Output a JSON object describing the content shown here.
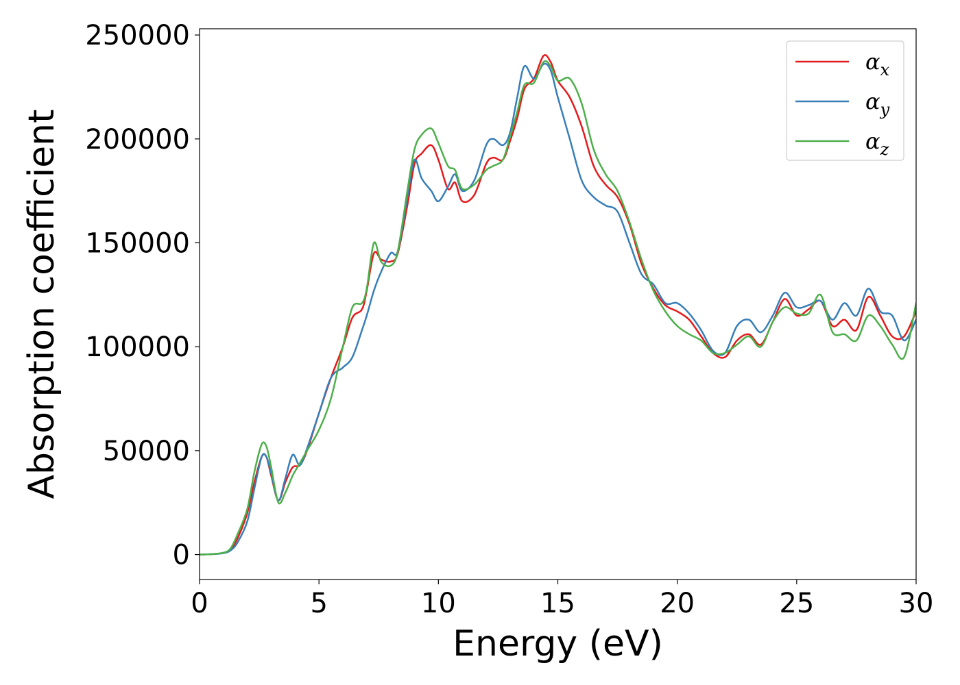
{
  "chart_data": {
    "type": "line",
    "title": "",
    "xlabel": "Energy (eV)",
    "ylabel": "Absorption coefficient",
    "xlim": [
      0,
      30
    ],
    "ylim": [
      -12000,
      253000
    ],
    "xticks": [
      0,
      5,
      10,
      15,
      20,
      25,
      30
    ],
    "xtick_labels": [
      "0",
      "5",
      "10",
      "15",
      "20",
      "25",
      "30"
    ],
    "yticks": [
      0,
      50000,
      100000,
      150000,
      200000,
      250000
    ],
    "ytick_labels": [
      "0",
      "50000",
      "100000",
      "150000",
      "200000",
      "250000"
    ],
    "grid": false,
    "legend": {
      "placement": "top-right"
    },
    "series": [
      {
        "name": "αx",
        "legend_base": "α",
        "legend_sub": "x",
        "color": "#e41a1c",
        "points": [
          [
            0,
            0
          ],
          [
            0.5,
            200
          ],
          [
            1.0,
            800
          ],
          [
            1.3,
            2500
          ],
          [
            1.6,
            8000
          ],
          [
            2.0,
            20000
          ],
          [
            2.3,
            35000
          ],
          [
            2.6,
            47000
          ],
          [
            2.8,
            47000
          ],
          [
            3.0,
            38000
          ],
          [
            3.3,
            26000
          ],
          [
            3.6,
            35000
          ],
          [
            3.9,
            42000
          ],
          [
            4.2,
            43000
          ],
          [
            4.5,
            50000
          ],
          [
            5.0,
            68000
          ],
          [
            5.5,
            85000
          ],
          [
            6.0,
            100000
          ],
          [
            6.4,
            114000
          ],
          [
            6.8,
            118000
          ],
          [
            7.0,
            127000
          ],
          [
            7.3,
            145000
          ],
          [
            7.6,
            142000
          ],
          [
            8.0,
            141000
          ],
          [
            8.3,
            145000
          ],
          [
            8.7,
            168000
          ],
          [
            9.0,
            188000
          ],
          [
            9.3,
            193000
          ],
          [
            9.7,
            197000
          ],
          [
            10.0,
            190000
          ],
          [
            10.4,
            176000
          ],
          [
            10.7,
            179000
          ],
          [
            11.0,
            170000
          ],
          [
            11.5,
            173000
          ],
          [
            12.0,
            188000
          ],
          [
            12.3,
            191000
          ],
          [
            12.7,
            190000
          ],
          [
            13.0,
            199000
          ],
          [
            13.3,
            210000
          ],
          [
            13.6,
            224000
          ],
          [
            14.0,
            229000
          ],
          [
            14.4,
            240000
          ],
          [
            14.7,
            237000
          ],
          [
            15.0,
            228000
          ],
          [
            15.5,
            220000
          ],
          [
            16.0,
            206000
          ],
          [
            16.5,
            187000
          ],
          [
            17.0,
            178000
          ],
          [
            17.5,
            172000
          ],
          [
            18.0,
            159000
          ],
          [
            18.5,
            140000
          ],
          [
            19.0,
            128000
          ],
          [
            19.5,
            120000
          ],
          [
            20.0,
            117000
          ],
          [
            20.5,
            113000
          ],
          [
            21.0,
            105000
          ],
          [
            21.5,
            97000
          ],
          [
            22.0,
            95000
          ],
          [
            22.5,
            103000
          ],
          [
            23.0,
            106000
          ],
          [
            23.5,
            101000
          ],
          [
            24.0,
            112000
          ],
          [
            24.5,
            123000
          ],
          [
            25.0,
            115000
          ],
          [
            25.5,
            118000
          ],
          [
            26.0,
            122000
          ],
          [
            26.5,
            110000
          ],
          [
            27.0,
            113000
          ],
          [
            27.5,
            108000
          ],
          [
            28.0,
            124000
          ],
          [
            28.5,
            115000
          ],
          [
            29.0,
            105000
          ],
          [
            29.5,
            105000
          ],
          [
            30.0,
            117000
          ]
        ]
      },
      {
        "name": "αy",
        "legend_base": "α",
        "legend_sub": "y",
        "color": "#377eb8",
        "points": [
          [
            0,
            0
          ],
          [
            0.5,
            200
          ],
          [
            1.0,
            700
          ],
          [
            1.3,
            2000
          ],
          [
            1.6,
            6000
          ],
          [
            2.0,
            16000
          ],
          [
            2.3,
            32000
          ],
          [
            2.6,
            47000
          ],
          [
            2.8,
            47000
          ],
          [
            3.0,
            39000
          ],
          [
            3.3,
            26000
          ],
          [
            3.6,
            37000
          ],
          [
            3.9,
            48000
          ],
          [
            4.2,
            43000
          ],
          [
            4.5,
            51000
          ],
          [
            5.0,
            68000
          ],
          [
            5.5,
            85000
          ],
          [
            6.0,
            90000
          ],
          [
            6.4,
            95000
          ],
          [
            6.8,
            108000
          ],
          [
            7.0,
            115000
          ],
          [
            7.3,
            127000
          ],
          [
            7.6,
            136000
          ],
          [
            8.0,
            145000
          ],
          [
            8.3,
            146000
          ],
          [
            8.7,
            172000
          ],
          [
            9.0,
            190000
          ],
          [
            9.3,
            181000
          ],
          [
            9.7,
            175000
          ],
          [
            10.0,
            170000
          ],
          [
            10.4,
            177000
          ],
          [
            10.7,
            183000
          ],
          [
            11.0,
            175000
          ],
          [
            11.5,
            180000
          ],
          [
            12.0,
            197000
          ],
          [
            12.3,
            200000
          ],
          [
            12.7,
            197000
          ],
          [
            13.0,
            203000
          ],
          [
            13.3,
            220000
          ],
          [
            13.6,
            235000
          ],
          [
            14.0,
            229000
          ],
          [
            14.4,
            236000
          ],
          [
            14.7,
            233000
          ],
          [
            15.0,
            220000
          ],
          [
            15.5,
            200000
          ],
          [
            16.0,
            180000
          ],
          [
            16.5,
            172000
          ],
          [
            17.0,
            168000
          ],
          [
            17.5,
            165000
          ],
          [
            18.0,
            150000
          ],
          [
            18.5,
            135000
          ],
          [
            19.0,
            130000
          ],
          [
            19.5,
            121000
          ],
          [
            20.0,
            121000
          ],
          [
            20.5,
            116000
          ],
          [
            21.0,
            108000
          ],
          [
            21.5,
            98000
          ],
          [
            22.0,
            97000
          ],
          [
            22.5,
            110000
          ],
          [
            23.0,
            113000
          ],
          [
            23.5,
            107000
          ],
          [
            24.0,
            115000
          ],
          [
            24.5,
            126000
          ],
          [
            25.0,
            119000
          ],
          [
            25.5,
            120000
          ],
          [
            26.0,
            122000
          ],
          [
            26.5,
            113000
          ],
          [
            27.0,
            121000
          ],
          [
            27.5,
            115000
          ],
          [
            28.0,
            128000
          ],
          [
            28.5,
            117000
          ],
          [
            29.0,
            115000
          ],
          [
            29.5,
            103000
          ],
          [
            30.0,
            113000
          ]
        ]
      },
      {
        "name": "αz",
        "legend_base": "α",
        "legend_sub": "z",
        "color": "#4daf4a",
        "points": [
          [
            0,
            0
          ],
          [
            0.5,
            200
          ],
          [
            1.0,
            900
          ],
          [
            1.3,
            3000
          ],
          [
            1.6,
            10000
          ],
          [
            2.0,
            22000
          ],
          [
            2.3,
            40000
          ],
          [
            2.6,
            53000
          ],
          [
            2.8,
            52000
          ],
          [
            3.0,
            42000
          ],
          [
            3.3,
            25000
          ],
          [
            3.6,
            30000
          ],
          [
            3.9,
            38000
          ],
          [
            4.2,
            44000
          ],
          [
            4.5,
            50000
          ],
          [
            5.0,
            60000
          ],
          [
            5.5,
            75000
          ],
          [
            6.0,
            100000
          ],
          [
            6.4,
            119000
          ],
          [
            6.8,
            121000
          ],
          [
            7.0,
            128000
          ],
          [
            7.3,
            150000
          ],
          [
            7.6,
            141000
          ],
          [
            8.0,
            139000
          ],
          [
            8.3,
            146000
          ],
          [
            8.7,
            175000
          ],
          [
            9.0,
            195000
          ],
          [
            9.3,
            202000
          ],
          [
            9.7,
            205000
          ],
          [
            10.0,
            198000
          ],
          [
            10.4,
            187000
          ],
          [
            10.7,
            185000
          ],
          [
            11.0,
            176000
          ],
          [
            11.5,
            178000
          ],
          [
            12.0,
            185000
          ],
          [
            12.3,
            187000
          ],
          [
            12.7,
            190000
          ],
          [
            13.0,
            201000
          ],
          [
            13.3,
            213000
          ],
          [
            13.6,
            226000
          ],
          [
            14.0,
            227000
          ],
          [
            14.4,
            237000
          ],
          [
            14.7,
            235000
          ],
          [
            15.0,
            228000
          ],
          [
            15.5,
            229000
          ],
          [
            16.0,
            217000
          ],
          [
            16.5,
            195000
          ],
          [
            17.0,
            183000
          ],
          [
            17.5,
            175000
          ],
          [
            18.0,
            160000
          ],
          [
            18.5,
            142000
          ],
          [
            19.0,
            127000
          ],
          [
            19.5,
            117000
          ],
          [
            20.0,
            110000
          ],
          [
            20.5,
            106000
          ],
          [
            21.0,
            103000
          ],
          [
            21.5,
            97000
          ],
          [
            22.0,
            97000
          ],
          [
            22.5,
            101000
          ],
          [
            23.0,
            105000
          ],
          [
            23.5,
            100000
          ],
          [
            24.0,
            112000
          ],
          [
            24.5,
            119000
          ],
          [
            25.0,
            116000
          ],
          [
            25.5,
            116000
          ],
          [
            26.0,
            125000
          ],
          [
            26.5,
            107000
          ],
          [
            27.0,
            106000
          ],
          [
            27.5,
            103000
          ],
          [
            28.0,
            115000
          ],
          [
            28.5,
            110000
          ],
          [
            29.0,
            101000
          ],
          [
            29.5,
            95000
          ],
          [
            30.0,
            121000
          ]
        ]
      }
    ]
  }
}
